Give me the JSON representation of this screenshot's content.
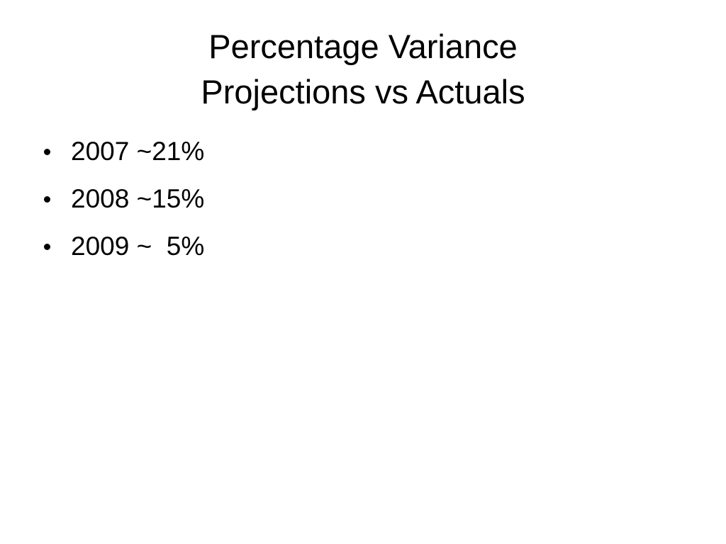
{
  "slide": {
    "title": [
      "Percentage Variance",
      "Projections vs Actuals"
    ],
    "bullets": [
      "2007 ~21%",
      "2008 ~15%",
      "2009 ~  5%"
    ]
  }
}
